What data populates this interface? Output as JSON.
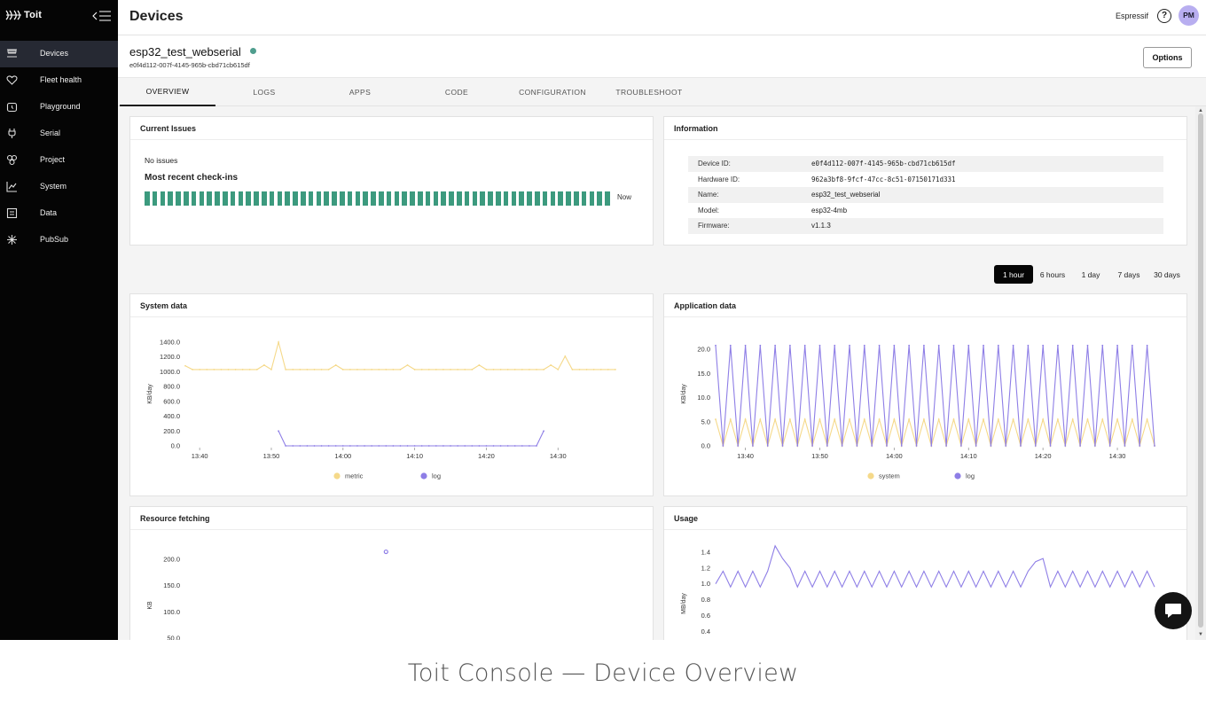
{
  "brand": {
    "name": "Toit"
  },
  "sidebar": {
    "items": [
      {
        "label": "Devices",
        "icon": "devices-icon",
        "active": true
      },
      {
        "label": "Fleet health",
        "icon": "heart-icon",
        "active": false
      },
      {
        "label": "Playground",
        "icon": "alarm-icon",
        "active": false
      },
      {
        "label": "Serial",
        "icon": "plug-icon",
        "active": false
      },
      {
        "label": "Project",
        "icon": "flower-icon",
        "active": false
      },
      {
        "label": "System",
        "icon": "chart-line-icon",
        "active": false
      },
      {
        "label": "Data",
        "icon": "document-icon",
        "active": false
      },
      {
        "label": "PubSub",
        "icon": "sparkle-icon",
        "active": false
      }
    ]
  },
  "header": {
    "title": "Devices",
    "org": "Espressif",
    "help": "?",
    "avatar": "PM"
  },
  "device": {
    "name": "esp32_test_webserial",
    "id": "e0f4d112-007f-4145-965b-cbd71cb615df",
    "status_color": "#4f9e8e",
    "options_label": "Options"
  },
  "tabs": [
    {
      "label": "OVERVIEW",
      "active": true
    },
    {
      "label": "LOGS",
      "active": false
    },
    {
      "label": "APPS",
      "active": false
    },
    {
      "label": "CODE",
      "active": false
    },
    {
      "label": "CONFIGURATION",
      "active": false
    },
    {
      "label": "TROUBLESHOOT",
      "active": false
    }
  ],
  "issues": {
    "title": "Current Issues",
    "status": "No issues",
    "checkins_title": "Most recent check-ins",
    "checkin_count": 60,
    "checkin_color": "#3c9a7e",
    "now_label": "Now"
  },
  "information": {
    "title": "Information",
    "rows": [
      {
        "key": "Device ID:",
        "value": "e0f4d112-007f-4145-965b-cbd71cb615df",
        "mono": true
      },
      {
        "key": "Hardware ID:",
        "value": "962a3bf8-9fcf-47cc-8c51-07150171d331",
        "mono": true
      },
      {
        "key": "Name:",
        "value": "esp32_test_webserial",
        "mono": false
      },
      {
        "key": "Model:",
        "value": "esp32-4mb",
        "mono": false
      },
      {
        "key": "Firmware:",
        "value": "v1.1.3",
        "mono": false
      }
    ]
  },
  "time_ranges": [
    {
      "label": "1 hour",
      "active": true
    },
    {
      "label": "6 hours",
      "active": false
    },
    {
      "label": "1 day",
      "active": false
    },
    {
      "label": "7 days",
      "active": false
    },
    {
      "label": "30 days",
      "active": false
    }
  ],
  "colors": {
    "yellow": "#f5d98a",
    "purple": "#8e7ee6"
  },
  "chart_data": [
    {
      "id": "system",
      "title": "System data",
      "type": "line",
      "ylabel": "KB/day",
      "yticks": [
        "1400.0",
        "1200.0",
        "1000.0",
        "800.0",
        "600.0",
        "400.0",
        "200.0",
        "0.0"
      ],
      "ylim": [
        0,
        1400
      ],
      "xticks": [
        "13:40",
        "13:50",
        "14:00",
        "14:10",
        "14:20",
        "14:30"
      ],
      "xlim_minutes": [
        -2,
        59
      ],
      "legend": [
        "metric",
        "log"
      ],
      "series": [
        {
          "name": "metric",
          "color": "#f5d98a",
          "x": [
            -2,
            -1,
            0,
            1,
            2,
            3,
            4,
            5,
            6,
            7,
            8,
            9,
            10,
            11,
            12,
            13,
            14,
            15,
            16,
            17,
            18,
            19,
            20,
            21,
            22,
            23,
            24,
            25,
            26,
            27,
            28,
            29,
            30,
            31,
            32,
            33,
            34,
            35,
            36,
            37,
            38,
            39,
            40,
            41,
            42,
            43,
            44,
            45,
            46,
            47,
            48,
            49,
            50,
            51,
            52,
            53,
            54,
            55,
            56,
            57,
            58
          ],
          "y": [
            1080,
            1030,
            1030,
            1030,
            1030,
            1030,
            1030,
            1030,
            1030,
            1030,
            1030,
            1090,
            1030,
            1400,
            1030,
            1030,
            1030,
            1030,
            1030,
            1030,
            1030,
            1090,
            1030,
            1030,
            1030,
            1030,
            1030,
            1030,
            1030,
            1030,
            1030,
            1090,
            1030,
            1030,
            1030,
            1030,
            1030,
            1030,
            1030,
            1030,
            1030,
            1090,
            1030,
            1030,
            1030,
            1030,
            1030,
            1030,
            1030,
            1030,
            1030,
            1090,
            1030,
            1210,
            1030,
            1030,
            1030,
            1030,
            1030,
            1030,
            1030
          ]
        },
        {
          "name": "log",
          "color": "#8e7ee6",
          "x": [
            11,
            12,
            13,
            14,
            15,
            16,
            17,
            18,
            19,
            20,
            21,
            22,
            23,
            24,
            25,
            26,
            27,
            28,
            29,
            30,
            31,
            32,
            33,
            34,
            35,
            36,
            37,
            38,
            39,
            40,
            41,
            42,
            43,
            44,
            45,
            46,
            47,
            48
          ],
          "y": [
            200,
            0,
            0,
            0,
            0,
            0,
            0,
            0,
            0,
            0,
            0,
            0,
            0,
            0,
            0,
            0,
            0,
            0,
            0,
            0,
            0,
            0,
            0,
            0,
            0,
            0,
            0,
            0,
            0,
            0,
            0,
            0,
            0,
            0,
            0,
            0,
            0,
            200
          ]
        }
      ]
    },
    {
      "id": "application",
      "title": "Application data",
      "type": "line",
      "ylabel": "KB/day",
      "yticks": [
        "20.0",
        "15.0",
        "10.0",
        "5.0",
        "0.0"
      ],
      "ylim": [
        0,
        21.5
      ],
      "xticks": [
        "13:40",
        "13:50",
        "14:00",
        "14:10",
        "14:20",
        "14:30"
      ],
      "xlim_minutes": [
        -4,
        55
      ],
      "legend": [
        "system",
        "log"
      ],
      "series": [
        {
          "name": "system",
          "color": "#f5d98a",
          "pattern": "zigzag",
          "high": 5.5,
          "low": 0,
          "period_minutes": 2,
          "start": -4,
          "end": 55
        },
        {
          "name": "log",
          "color": "#8e7ee6",
          "pattern": "zigzag",
          "high": 20.8,
          "low": 0,
          "period_minutes": 2,
          "start": -4,
          "end": 55
        }
      ]
    },
    {
      "id": "resource",
      "title": "Resource fetching",
      "type": "scatter",
      "ylabel": "KB",
      "yticks": [
        "200.0",
        "150.0",
        "100.0",
        "50.0"
      ],
      "ylim": [
        0,
        225
      ],
      "xlim_minutes": [
        -2,
        59
      ],
      "series": [
        {
          "name": "",
          "color": "#8e7ee6",
          "x": [
            26
          ],
          "y": [
            214
          ]
        }
      ]
    },
    {
      "id": "usage",
      "title": "Usage",
      "type": "line",
      "ylabel": "MB/day",
      "yticks": [
        "1.4",
        "1.2",
        "1.0",
        "0.8",
        "0.6",
        "0.4"
      ],
      "ylim": [
        0,
        1.5
      ],
      "xlim_minutes": [
        -4,
        55
      ],
      "series": [
        {
          "name": "",
          "color": "#8e7ee6",
          "x": [
            -4,
            -3,
            -2,
            -1,
            0,
            1,
            2,
            3,
            4,
            5,
            6,
            7,
            8,
            9,
            10,
            11,
            12,
            13,
            14,
            15,
            16,
            17,
            18,
            19,
            20,
            21,
            22,
            23,
            24,
            25,
            26,
            27,
            28,
            29,
            30,
            31,
            32,
            33,
            34,
            35,
            36,
            37,
            38,
            39,
            40,
            41,
            42,
            43,
            44,
            45,
            46,
            47,
            48,
            49,
            50,
            51,
            52,
            53,
            54,
            55
          ],
          "y": [
            1.0,
            1.16,
            0.96,
            1.16,
            0.96,
            1.16,
            0.96,
            1.16,
            1.48,
            1.32,
            1.2,
            0.96,
            1.16,
            0.96,
            1.16,
            0.96,
            1.16,
            0.96,
            1.16,
            0.96,
            1.16,
            0.96,
            1.16,
            0.96,
            1.16,
            0.96,
            1.16,
            0.96,
            1.16,
            0.96,
            1.16,
            0.96,
            1.16,
            0.96,
            1.16,
            0.96,
            1.16,
            0.96,
            1.16,
            0.96,
            1.16,
            0.96,
            1.16,
            1.28,
            1.32,
            0.96,
            1.16,
            0.96,
            1.16,
            0.96,
            1.16,
            0.96,
            1.16,
            0.96,
            1.16,
            0.96,
            1.16,
            0.96,
            1.16,
            0.96
          ]
        }
      ]
    }
  ],
  "caption": "Toit Console — Device Overview"
}
